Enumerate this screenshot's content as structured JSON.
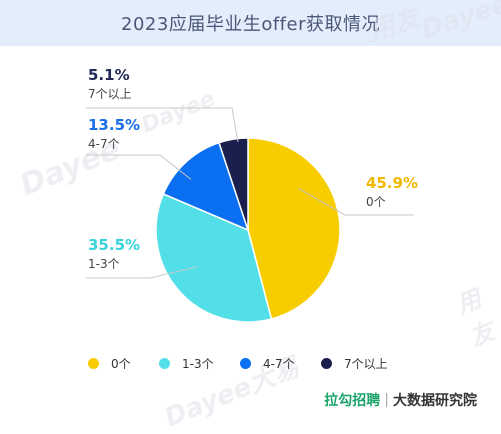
{
  "header": {
    "title": "2023应届毕业生offer获取情况"
  },
  "footer": {
    "brand": "拉勾招聘",
    "separator": "|",
    "sub": "大数据研究院"
  },
  "watermarks": [
    "用友",
    "Dayee",
    "Dayee大易"
  ],
  "chart_data": {
    "type": "pie",
    "title": "2023应届毕业生offer获取情况",
    "categories": [
      "0个",
      "1-3个",
      "4-7个",
      "7个以上"
    ],
    "values": [
      45.9,
      35.5,
      13.5,
      5.1
    ],
    "labels": [
      "45.9%",
      "35.5%",
      "13.5%",
      "5.1%"
    ],
    "colors": [
      "#f7cd00",
      "#52dfe8",
      "#0a6ff0",
      "#1a1f4e"
    ],
    "label_colors": [
      "#f0b800",
      "#3ad3dd",
      "#1a6ee8",
      "#222a55"
    ],
    "legend": "bottom"
  }
}
